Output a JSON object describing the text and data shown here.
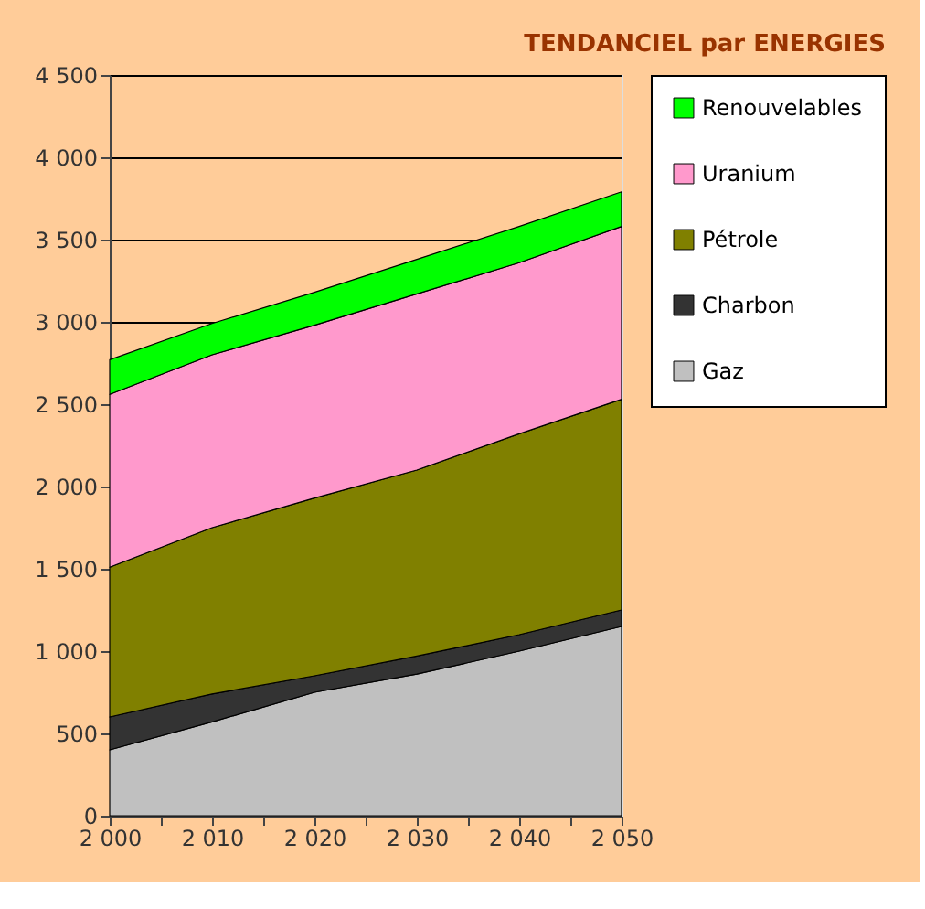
{
  "chart_data": {
    "type": "area",
    "title": "TENDANCIEL par ENERGIES",
    "stacked": true,
    "x": [
      2000,
      2010,
      2020,
      2030,
      2040,
      2050
    ],
    "series": [
      {
        "name": "Gaz",
        "color": "#c0c0c0",
        "values": [
          400,
          570,
          750,
          860,
          1000,
          1150
        ]
      },
      {
        "name": "Charbon",
        "color": "#333333",
        "values": [
          200,
          170,
          100,
          110,
          100,
          100
        ]
      },
      {
        "name": "Pétrole",
        "color": "#808000",
        "values": [
          910,
          1010,
          1080,
          1130,
          1220,
          1280
        ]
      },
      {
        "name": "Uranium",
        "color": "#ff99cc",
        "values": [
          1050,
          1050,
          1050,
          1070,
          1040,
          1050
        ]
      },
      {
        "name": "Renouvelables",
        "color": "#00ff00",
        "values": [
          210,
          190,
          200,
          210,
          220,
          210
        ]
      }
    ],
    "xlim": [
      2000,
      2050
    ],
    "xticks": [
      {
        "value": 2000,
        "label": "2 000"
      },
      {
        "value": 2005,
        "label": null
      },
      {
        "value": 2010,
        "label": "2 010"
      },
      {
        "value": 2015,
        "label": null
      },
      {
        "value": 2020,
        "label": "2 020"
      },
      {
        "value": 2025,
        "label": null
      },
      {
        "value": 2030,
        "label": "2 030"
      },
      {
        "value": 2035,
        "label": null
      },
      {
        "value": 2040,
        "label": "2 040"
      },
      {
        "value": 2045,
        "label": null
      },
      {
        "value": 2050,
        "label": "2 050"
      }
    ],
    "ylim": [
      0,
      4500
    ],
    "yticks": [
      0,
      500,
      {
        "value": 1000,
        "label": "1 000"
      },
      {
        "value": 1500,
        "label": "1 500"
      },
      {
        "value": 2000,
        "label": "2 000"
      },
      {
        "value": 2500,
        "label": "2 500"
      },
      {
        "value": 3000,
        "label": "3 000"
      },
      {
        "value": 3500,
        "label": "3 500"
      },
      {
        "value": 4000,
        "label": "4 000"
      },
      {
        "value": 4500,
        "label": "4 500"
      }
    ],
    "grid": "y",
    "legend": "right"
  }
}
